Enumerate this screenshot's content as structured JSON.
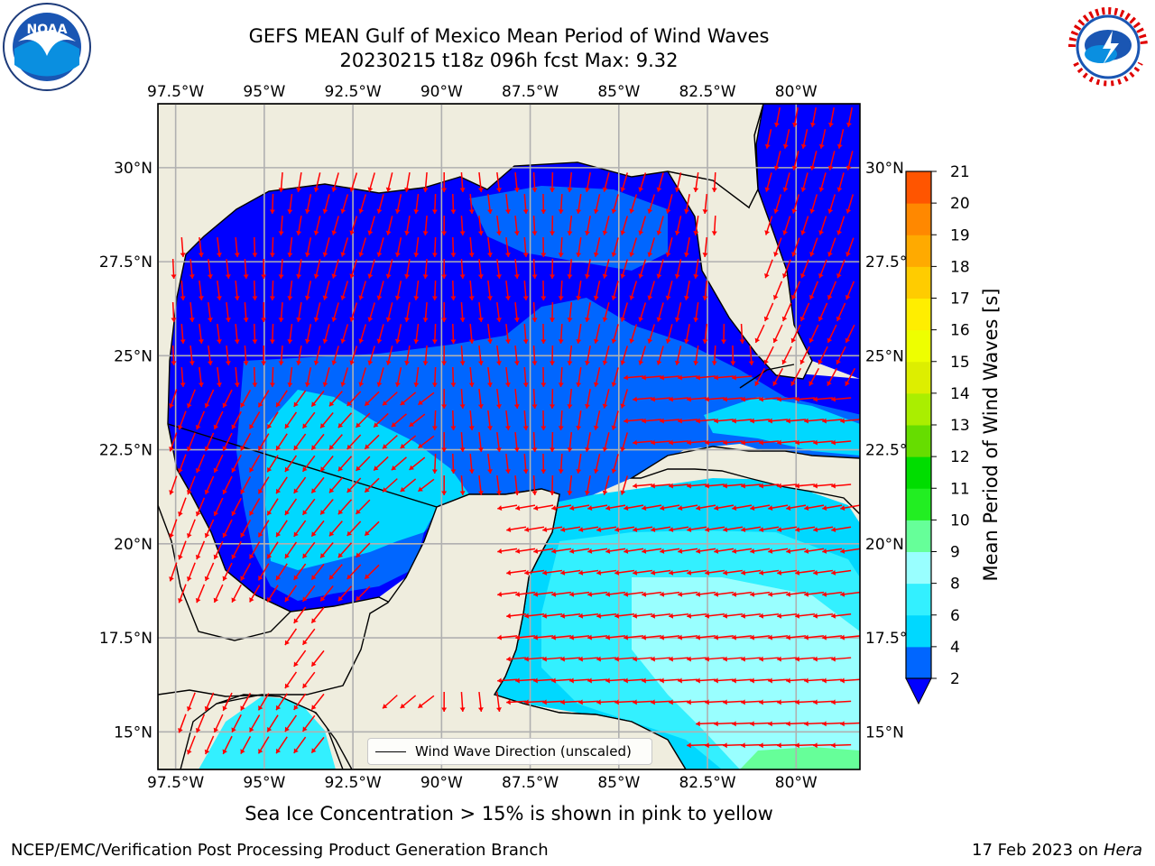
{
  "header": {
    "title_line1": "GEFS MEAN Gulf of Mexico Mean Period of Wind Waves",
    "title_line2": "20230215 t18z 096h fcst   Max: 9.32"
  },
  "logos": {
    "left": {
      "icon": "noaa-logo-icon",
      "text": "NOAA"
    },
    "right": {
      "icon": "nws-logo-icon"
    }
  },
  "map": {
    "lon_labels": [
      "97.5°W",
      "95°W",
      "92.5°W",
      "90°W",
      "87.5°W",
      "85°W",
      "82.5°W",
      "80°W"
    ],
    "lon_values": [
      -97.5,
      -95,
      -92.5,
      -90,
      -87.5,
      -85,
      -82.5,
      -80
    ],
    "lat_labels": [
      "15°N",
      "17.5°N",
      "20°N",
      "22.5°N",
      "25°N",
      "27.5°N",
      "30°N"
    ],
    "lat_values": [
      15,
      17.5,
      20,
      22.5,
      25,
      27.5,
      30
    ],
    "lon_range": [
      -98,
      -78.2
    ],
    "lat_range": [
      14,
      31.7
    ],
    "land_color": "#efedde",
    "arrow_color": "#ff0000",
    "grid": true,
    "legend": {
      "label": "Wind Wave Direction (unscaled)",
      "placement": "lower-center"
    }
  },
  "colorbar": {
    "title": "Mean Period of Wind Waves [s]",
    "tick_labels": [
      "2",
      "4",
      "6",
      "8",
      "9",
      "10",
      "11",
      "12",
      "13",
      "14",
      "15",
      "16",
      "17",
      "18",
      "19",
      "20",
      "21"
    ],
    "colors": [
      "#0066ff",
      "#00d8ff",
      "#33f0ff",
      "#99ffff",
      "#66ff99",
      "#22ee22",
      "#00dd00",
      "#66dd00",
      "#aaee00",
      "#ddee00",
      "#eeff00",
      "#ffee00",
      "#ffcc00",
      "#ffaa00",
      "#ff8800",
      "#ff5500",
      "#ff2200",
      "#ff0000"
    ],
    "under_color": "#0000ff"
  },
  "footnote": "Sea Ice Concentration > 15% is shown in pink to yellow",
  "footer": {
    "credit": "NCEP/EMC/Verification Post Processing Product Generation Branch",
    "date": "17 Feb 2023 on",
    "machine": "Hera"
  }
}
